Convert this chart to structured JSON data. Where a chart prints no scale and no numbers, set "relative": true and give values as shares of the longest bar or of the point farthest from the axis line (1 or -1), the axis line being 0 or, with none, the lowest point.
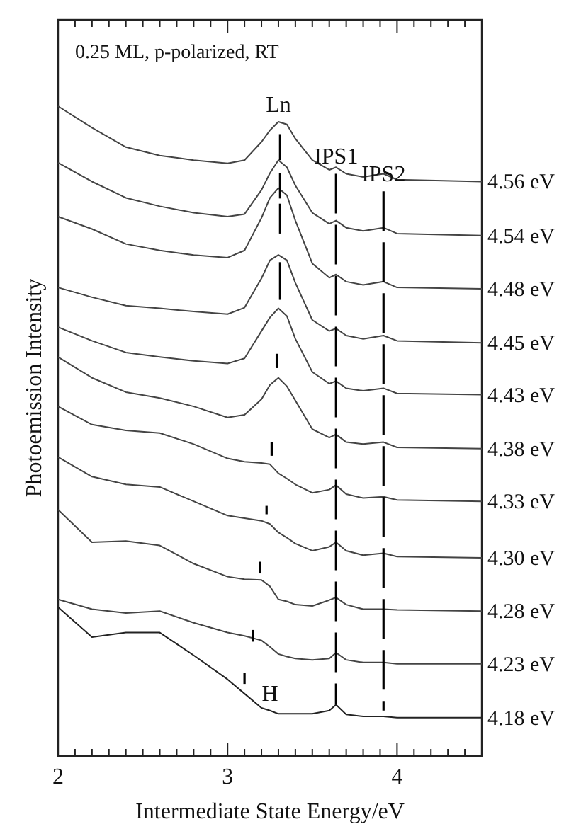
{
  "chart_data": {
    "type": "line",
    "relative": true,
    "xlabel": "Intermediate State Energy/eV",
    "ylabel": "Photoemission Intensity",
    "xlim": [
      2,
      4.5
    ],
    "xticks": [
      2,
      {
        "value": 2.1,
        "label": null
      },
      {
        "value": 2.2,
        "label": null
      },
      {
        "value": 2.3,
        "label": null
      },
      {
        "value": 2.4,
        "label": null
      },
      {
        "value": 2.5,
        "label": null
      },
      {
        "value": 2.6,
        "label": null
      },
      {
        "value": 2.7,
        "label": null
      },
      {
        "value": 2.8,
        "label": null
      },
      {
        "value": 2.9,
        "label": null
      },
      3,
      {
        "value": 3.1,
        "label": null
      },
      {
        "value": 3.2,
        "label": null
      },
      {
        "value": 3.3,
        "label": null
      },
      {
        "value": 3.4,
        "label": null
      },
      {
        "value": 3.5,
        "label": null
      },
      {
        "value": 3.6,
        "label": null
      },
      {
        "value": 3.7,
        "label": null
      },
      {
        "value": 3.8,
        "label": null
      },
      {
        "value": 3.9,
        "label": null
      },
      4,
      {
        "value": 4.1,
        "label": null
      },
      {
        "value": 4.2,
        "label": null
      },
      {
        "value": 4.3,
        "label": null
      },
      {
        "value": 4.4,
        "label": null
      }
    ],
    "x": [
      2.0,
      2.2,
      2.4,
      2.6,
      2.8,
      3.0,
      3.1,
      3.2,
      3.25,
      3.3,
      3.35,
      3.4,
      3.5,
      3.6,
      3.64,
      3.7,
      3.8,
      3.92,
      4.0,
      4.5
    ],
    "annotations": [
      "0.25 ML, p-polarized, RT",
      {
        "text": "Ln",
        "x": 3.3,
        "y": 0.976
      },
      {
        "text": "IPS1",
        "x": 3.64,
        "y": 0.896
      },
      {
        "text": "IPS2",
        "x": 3.92,
        "y": 0.869
      },
      {
        "text": "H",
        "x": 3.25,
        "y": 0.07
      }
    ],
    "series": [
      {
        "name": "4.56 eV",
        "color": "#444444",
        "values": [
          1.0,
          0.967,
          0.937,
          0.924,
          0.917,
          0.912,
          0.917,
          0.945,
          0.963,
          0.976,
          0.972,
          0.95,
          0.917,
          0.902,
          0.906,
          0.896,
          0.891,
          0.896,
          0.887,
          0.884
        ]
      },
      {
        "name": "4.54 eV",
        "color": "#444444",
        "values": [
          0.913,
          0.884,
          0.859,
          0.846,
          0.836,
          0.83,
          0.834,
          0.871,
          0.897,
          0.917,
          0.906,
          0.878,
          0.836,
          0.819,
          0.824,
          0.813,
          0.808,
          0.813,
          0.804,
          0.801
        ]
      },
      {
        "name": "4.48 eV",
        "color": "#444444",
        "values": [
          0.83,
          0.811,
          0.788,
          0.778,
          0.771,
          0.767,
          0.778,
          0.828,
          0.859,
          0.874,
          0.863,
          0.824,
          0.758,
          0.736,
          0.741,
          0.73,
          0.725,
          0.73,
          0.721,
          0.719
        ]
      },
      {
        "name": "4.45 eV",
        "color": "#444444",
        "values": [
          0.721,
          0.706,
          0.693,
          0.689,
          0.684,
          0.68,
          0.69,
          0.735,
          0.763,
          0.771,
          0.763,
          0.728,
          0.671,
          0.654,
          0.658,
          0.647,
          0.642,
          0.647,
          0.639,
          0.636
        ]
      },
      {
        "name": "4.43 eV",
        "color": "#444444",
        "values": [
          0.66,
          0.639,
          0.621,
          0.614,
          0.608,
          0.604,
          0.612,
          0.654,
          0.675,
          0.689,
          0.677,
          0.642,
          0.591,
          0.573,
          0.577,
          0.566,
          0.562,
          0.566,
          0.558,
          0.556
        ]
      },
      {
        "name": "4.38 eV",
        "color": "#444444",
        "values": [
          0.614,
          0.582,
          0.56,
          0.551,
          0.538,
          0.521,
          0.525,
          0.549,
          0.571,
          0.582,
          0.569,
          0.547,
          0.503,
          0.49,
          0.495,
          0.483,
          0.48,
          0.483,
          0.475,
          0.473
        ]
      },
      {
        "name": "4.33 eV",
        "color": "#444444",
        "values": [
          0.538,
          0.51,
          0.501,
          0.497,
          0.48,
          0.458,
          0.453,
          0.451,
          0.449,
          0.435,
          0.427,
          0.418,
          0.405,
          0.41,
          0.417,
          0.403,
          0.397,
          0.399,
          0.394,
          0.392
        ]
      },
      {
        "name": "4.30 eV",
        "color": "#444444",
        "values": [
          0.46,
          0.43,
          0.418,
          0.414,
          0.392,
          0.37,
          0.366,
          0.362,
          0.357,
          0.344,
          0.336,
          0.327,
          0.316,
          0.322,
          0.329,
          0.316,
          0.309,
          0.312,
          0.307,
          0.305
        ]
      },
      {
        "name": "4.28 eV",
        "color": "#444444",
        "values": [
          0.379,
          0.329,
          0.331,
          0.324,
          0.296,
          0.276,
          0.272,
          0.271,
          0.261,
          0.241,
          0.238,
          0.233,
          0.231,
          0.24,
          0.244,
          0.233,
          0.226,
          0.226,
          0.225,
          0.223
        ]
      },
      {
        "name": "4.23 eV",
        "color": "#444444",
        "values": [
          0.241,
          0.226,
          0.22,
          0.223,
          0.205,
          0.19,
          0.185,
          0.178,
          0.168,
          0.157,
          0.153,
          0.15,
          0.148,
          0.15,
          0.159,
          0.148,
          0.144,
          0.144,
          0.142,
          0.142
        ]
      },
      {
        "name": "4.18 eV",
        "color": "#222222",
        "values": [
          0.229,
          0.183,
          0.19,
          0.19,
          0.155,
          0.118,
          0.096,
          0.074,
          0.07,
          0.065,
          0.065,
          0.065,
          0.065,
          0.07,
          0.079,
          0.064,
          0.061,
          0.061,
          0.059,
          0.059
        ]
      },
      {
        "color": "#000000",
        "x": [
          3.31,
          3.31
        ],
        "values": [
          0.957,
          0.917
        ]
      },
      {
        "color": "#000000",
        "x": [
          3.31,
          3.31
        ],
        "values": [
          0.897,
          0.858
        ]
      },
      {
        "color": "#000000",
        "x": [
          3.31,
          3.31
        ],
        "values": [
          0.85,
          0.804
        ]
      },
      {
        "color": "#000000",
        "x": [
          3.31,
          3.31
        ],
        "values": [
          0.76,
          0.702
        ]
      },
      {
        "color": "#000000",
        "x": [
          3.29,
          3.29
        ],
        "values": [
          0.619,
          0.597
        ]
      },
      {
        "color": "#000000",
        "x": [
          3.26,
          3.26
        ],
        "values": [
          0.483,
          0.462
        ]
      },
      {
        "color": "#000000",
        "x": [
          3.23,
          3.23
        ],
        "values": [
          0.385,
          0.372
        ]
      },
      {
        "color": "#000000",
        "x": [
          3.19,
          3.19
        ],
        "values": [
          0.299,
          0.281
        ]
      },
      {
        "color": "#000000",
        "x": [
          3.15,
          3.15
        ],
        "values": [
          0.194,
          0.176
        ]
      },
      {
        "color": "#000000",
        "x": [
          3.1,
          3.1
        ],
        "values": [
          0.128,
          0.111
        ]
      },
      {
        "color": "#000000",
        "line_style": "dashed",
        "x": [
          3.64,
          3.64
        ],
        "values": [
          0.896,
          0.079
        ]
      },
      {
        "color": "#000000",
        "line_style": "dashed",
        "x": [
          3.92,
          3.92
        ],
        "values": [
          0.869,
          0.07
        ]
      }
    ]
  }
}
